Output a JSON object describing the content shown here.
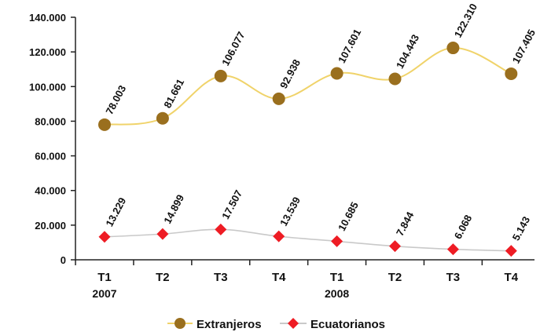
{
  "chart_data": {
    "type": "line",
    "categories": [
      "T1",
      "T2",
      "T3",
      "T4",
      "T1",
      "T2",
      "T3",
      "T4"
    ],
    "year_labels": [
      {
        "index": 0,
        "label": "2007"
      },
      {
        "index": 4,
        "label": "2008"
      }
    ],
    "y_ticks": [
      "0",
      "20.000",
      "40.000",
      "60.000",
      "80.000",
      "100.000",
      "120.000",
      "140.000"
    ],
    "ylim": [
      0,
      140000
    ],
    "grid": false,
    "legend_position": "bottom",
    "series": [
      {
        "name": "Extranjeros",
        "color": "#f0d36a",
        "marker_color": "#9a6f1e",
        "marker": "circle",
        "values": [
          78003,
          81661,
          106077,
          92938,
          107601,
          104443,
          122310,
          107405
        ],
        "labels": [
          "78.003",
          "81.661",
          "106.077",
          "92.938",
          "107.601",
          "104.443",
          "122.310",
          "107.405"
        ]
      },
      {
        "name": "Ecuatorianos",
        "color": "#c9c9c9",
        "marker_color": "#ee1c24",
        "marker": "diamond",
        "values": [
          13229,
          14899,
          17507,
          13539,
          10685,
          7844,
          6068,
          5143
        ],
        "labels": [
          "13.229",
          "14.899",
          "17.507",
          "13.539",
          "10.685",
          "7.844",
          "6.068",
          "5.143"
        ]
      }
    ]
  }
}
